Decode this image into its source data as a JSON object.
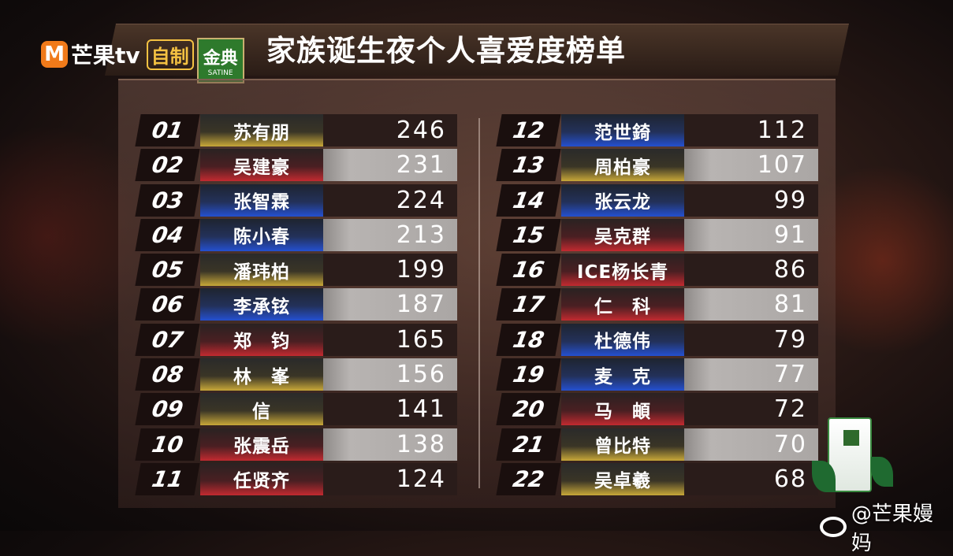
{
  "header": {
    "brand": "芒果tv",
    "brand_mark": "M",
    "badge": "自制",
    "sponsor": "金典",
    "sponsor_en": "SATINE",
    "title": "家族诞生夜个人喜爱度榜单"
  },
  "colors": {
    "gold": "#c8a838",
    "red": "#c22a30",
    "blue": "#2450d0",
    "accent_orange": "#f07a1a"
  },
  "left_column": [
    {
      "rank": "01",
      "name": "苏有朋",
      "score": "246",
      "color": "gold"
    },
    {
      "rank": "02",
      "name": "吴建豪",
      "score": "231",
      "color": "red"
    },
    {
      "rank": "03",
      "name": "张智霖",
      "score": "224",
      "color": "blue"
    },
    {
      "rank": "04",
      "name": "陈小春",
      "score": "213",
      "color": "blue"
    },
    {
      "rank": "05",
      "name": "潘玮柏",
      "score": "199",
      "color": "gold"
    },
    {
      "rank": "06",
      "name": "李承铉",
      "score": "187",
      "color": "blue"
    },
    {
      "rank": "07",
      "name": "郑　钧",
      "score": "165",
      "color": "red"
    },
    {
      "rank": "08",
      "name": "林　峯",
      "score": "156",
      "color": "gold"
    },
    {
      "rank": "09",
      "name": "信",
      "score": "141",
      "color": "gold"
    },
    {
      "rank": "10",
      "name": "张震岳",
      "score": "138",
      "color": "red"
    },
    {
      "rank": "11",
      "name": "任贤齐",
      "score": "124",
      "color": "red"
    }
  ],
  "right_column": [
    {
      "rank": "12",
      "name": "范世錡",
      "score": "112",
      "color": "blue"
    },
    {
      "rank": "13",
      "name": "周柏豪",
      "score": "107",
      "color": "gold"
    },
    {
      "rank": "14",
      "name": "张云龙",
      "score": "99",
      "color": "blue"
    },
    {
      "rank": "15",
      "name": "吴克群",
      "score": "91",
      "color": "red"
    },
    {
      "rank": "16",
      "name": "ICE杨长青",
      "score": "86",
      "color": "red"
    },
    {
      "rank": "17",
      "name": "仁　科",
      "score": "81",
      "color": "red"
    },
    {
      "rank": "18",
      "name": "杜德伟",
      "score": "79",
      "color": "blue"
    },
    {
      "rank": "19",
      "name": "麦　克",
      "score": "77",
      "color": "blue"
    },
    {
      "rank": "20",
      "name": "马　頔",
      "score": "72",
      "color": "red"
    },
    {
      "rank": "21",
      "name": "曾比特",
      "score": "70",
      "color": "gold"
    },
    {
      "rank": "22",
      "name": "吴卓羲",
      "score": "68",
      "color": "gold"
    }
  ],
  "watermark": "@芒果嫚妈"
}
